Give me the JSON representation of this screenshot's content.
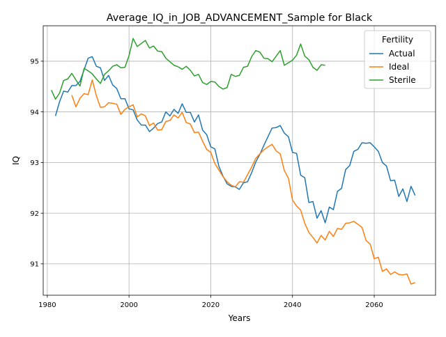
{
  "chart_data": {
    "type": "line",
    "title": "Average_IQ_in_JOB_ADVANCEMENT_Sample for Black",
    "xlabel": "Years",
    "ylabel": "IQ",
    "xlim": [
      1979,
      2075
    ],
    "ylim": [
      90.38,
      95.7
    ],
    "xticks": [
      1980,
      2000,
      2020,
      2040,
      2060
    ],
    "yticks": [
      91,
      92,
      93,
      94,
      95
    ],
    "grid": true,
    "legend": {
      "title": "Fertility",
      "placement": "top-right"
    },
    "series": [
      {
        "name": "Actual",
        "color": "#1f77b4",
        "x": [
          1982,
          1983,
          1984,
          1985,
          1986,
          1987,
          1988,
          1989,
          1990,
          1991,
          1992,
          1993,
          1994,
          1995,
          1996,
          1997,
          1998,
          1999,
          2000,
          2001,
          2002,
          2003,
          2004,
          2005,
          2006,
          2007,
          2008,
          2009,
          2010,
          2011,
          2012,
          2013,
          2014,
          2015,
          2016,
          2017,
          2018,
          2019,
          2020,
          2021,
          2022,
          2023,
          2024,
          2025,
          2026,
          2027,
          2028,
          2029,
          2030,
          2031,
          2032,
          2033,
          2034,
          2035,
          2036,
          2037,
          2038,
          2039,
          2040,
          2041,
          2042,
          2043,
          2044,
          2045,
          2046,
          2047,
          2048,
          2049,
          2050,
          2051,
          2052,
          2053,
          2054,
          2055,
          2056,
          2057,
          2058,
          2059,
          2060,
          2061,
          2062,
          2063,
          2064,
          2065,
          2066,
          2067,
          2068,
          2069,
          2070
        ],
        "values": [
          93.92,
          94.2,
          94.41,
          94.39,
          94.52,
          94.52,
          94.6,
          94.83,
          95.06,
          95.09,
          94.9,
          94.87,
          94.62,
          94.72,
          94.53,
          94.46,
          94.26,
          94.26,
          94.06,
          94.04,
          93.84,
          93.74,
          93.74,
          93.61,
          93.68,
          93.77,
          93.8,
          94.0,
          93.92,
          94.05,
          93.97,
          94.16,
          93.99,
          93.99,
          93.8,
          93.94,
          93.64,
          93.55,
          93.31,
          93.27,
          92.92,
          92.73,
          92.58,
          92.53,
          92.52,
          92.47,
          92.6,
          92.62,
          92.8,
          93.01,
          93.16,
          93.34,
          93.51,
          93.68,
          93.69,
          93.73,
          93.58,
          93.51,
          93.2,
          93.18,
          92.75,
          92.7,
          92.21,
          92.23,
          91.9,
          92.05,
          91.81,
          92.12,
          92.07,
          92.43,
          92.49,
          92.86,
          92.94,
          93.22,
          93.26,
          93.39,
          93.38,
          93.39,
          93.31,
          93.22,
          93.0,
          92.93,
          92.64,
          92.65,
          92.33,
          92.48,
          92.23,
          92.53,
          92.35
        ]
      },
      {
        "name": "Ideal",
        "color": "#ff7f0e",
        "x": [
          1986,
          1987,
          1988,
          1989,
          1990,
          1991,
          1992,
          1993,
          1994,
          1995,
          1996,
          1997,
          1998,
          1999,
          2000,
          2001,
          2002,
          2003,
          2004,
          2005,
          2006,
          2007,
          2008,
          2009,
          2010,
          2011,
          2012,
          2013,
          2014,
          2015,
          2016,
          2017,
          2018,
          2019,
          2020,
          2021,
          2022,
          2023,
          2024,
          2025,
          2026,
          2027,
          2028,
          2029,
          2030,
          2031,
          2032,
          2033,
          2034,
          2035,
          2036,
          2037,
          2038,
          2039,
          2040,
          2041,
          2042,
          2043,
          2044,
          2045,
          2046,
          2047,
          2048,
          2049,
          2050,
          2051,
          2052,
          2053,
          2054,
          2055,
          2056,
          2057,
          2058,
          2059,
          2060,
          2061,
          2062,
          2063,
          2064,
          2065,
          2066,
          2067,
          2068,
          2069,
          2070
        ],
        "values": [
          94.33,
          94.1,
          94.27,
          94.36,
          94.34,
          94.63,
          94.32,
          94.09,
          94.1,
          94.18,
          94.17,
          94.15,
          93.95,
          94.05,
          94.1,
          94.14,
          93.9,
          93.96,
          93.92,
          93.73,
          93.78,
          93.64,
          93.65,
          93.81,
          93.83,
          93.94,
          93.88,
          93.99,
          93.79,
          93.76,
          93.59,
          93.6,
          93.42,
          93.26,
          93.2,
          92.98,
          92.85,
          92.72,
          92.62,
          92.55,
          92.52,
          92.62,
          92.61,
          92.76,
          92.91,
          93.08,
          93.17,
          93.25,
          93.31,
          93.36,
          93.23,
          93.17,
          92.84,
          92.69,
          92.26,
          92.14,
          92.06,
          91.8,
          91.62,
          91.52,
          91.41,
          91.56,
          91.47,
          91.64,
          91.54,
          91.7,
          91.68,
          91.8,
          91.81,
          91.84,
          91.78,
          91.72,
          91.46,
          91.39,
          91.1,
          91.13,
          90.85,
          90.9,
          90.79,
          90.84,
          90.79,
          90.78,
          90.8,
          90.6,
          90.63
        ]
      },
      {
        "name": "Sterile",
        "color": "#2ca02c",
        "x": [
          1981,
          1982,
          1983,
          1984,
          1985,
          1986,
          1987,
          1988,
          1989,
          1990,
          1991,
          1992,
          1993,
          1994,
          1995,
          1996,
          1997,
          1998,
          1999,
          2000,
          2001,
          2002,
          2003,
          2004,
          2005,
          2006,
          2007,
          2008,
          2009,
          2010,
          2011,
          2012,
          2013,
          2014,
          2015,
          2016,
          2017,
          2018,
          2019,
          2020,
          2021,
          2022,
          2023,
          2024,
          2025,
          2026,
          2027,
          2028,
          2029,
          2030,
          2031,
          2032,
          2033,
          2034,
          2035,
          2036,
          2037,
          2038,
          2039,
          2040,
          2041,
          2042,
          2043,
          2044,
          2045,
          2046,
          2047,
          2048
        ],
        "values": [
          94.43,
          94.25,
          94.37,
          94.62,
          94.65,
          94.76,
          94.63,
          94.51,
          94.86,
          94.81,
          94.75,
          94.65,
          94.56,
          94.74,
          94.81,
          94.9,
          94.93,
          94.87,
          94.88,
          95.11,
          95.45,
          95.29,
          95.35,
          95.41,
          95.26,
          95.3,
          95.2,
          95.19,
          95.06,
          94.99,
          94.92,
          94.89,
          94.84,
          94.9,
          94.82,
          94.71,
          94.74,
          94.58,
          94.54,
          94.6,
          94.59,
          94.5,
          94.45,
          94.48,
          94.74,
          94.7,
          94.72,
          94.88,
          94.9,
          95.09,
          95.21,
          95.18,
          95.06,
          95.05,
          94.99,
          95.1,
          95.21,
          94.92,
          94.97,
          95.02,
          95.12,
          95.34,
          95.1,
          95.03,
          94.88,
          94.82,
          94.93,
          94.92
        ]
      }
    ]
  }
}
